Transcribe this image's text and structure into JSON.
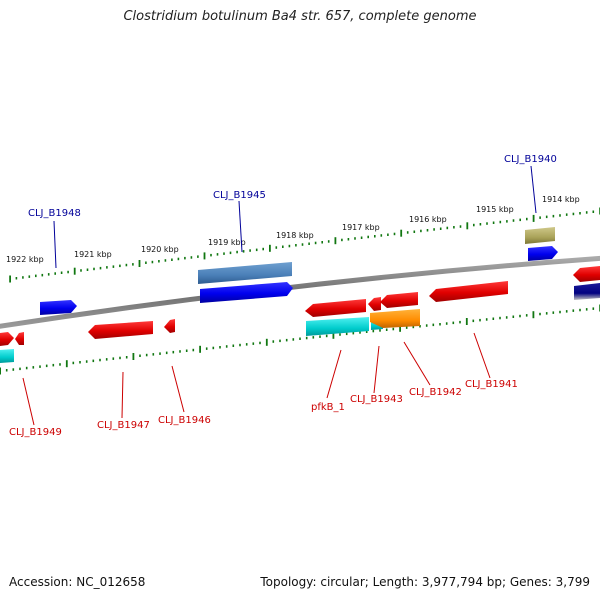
{
  "title": "Clostridium botulinum Ba4 str. 657, complete genome",
  "footer": {
    "accession": "Accession: NC_012658",
    "summary": "Topology: circular; Length: 3,977,794 bp; Genes: 3,799"
  },
  "colors": {
    "forward_cds": "#ff0000",
    "reverse_cds": "#0000ff",
    "forward_label": "#cc0000",
    "reverse_label": "#000099",
    "backbone": "#777777",
    "ticks": "#117711"
  },
  "kbp_ticks": [
    "1922 kbp",
    "1921 kbp",
    "1920 kbp",
    "1919 kbp",
    "1918 kbp",
    "1917 kbp",
    "1916 kbp",
    "1915 kbp",
    "1914 kbp"
  ],
  "gene_labels_outer": [
    "CLJ_B1948",
    "CLJ_B1945",
    "CLJ_B1940"
  ],
  "gene_labels_inner": [
    "CLJ_B1949",
    "CLJ_B1947",
    "CLJ_B1946",
    "pfkB_1",
    "CLJ_B1943",
    "CLJ_B1942",
    "CLJ_B1941"
  ]
}
